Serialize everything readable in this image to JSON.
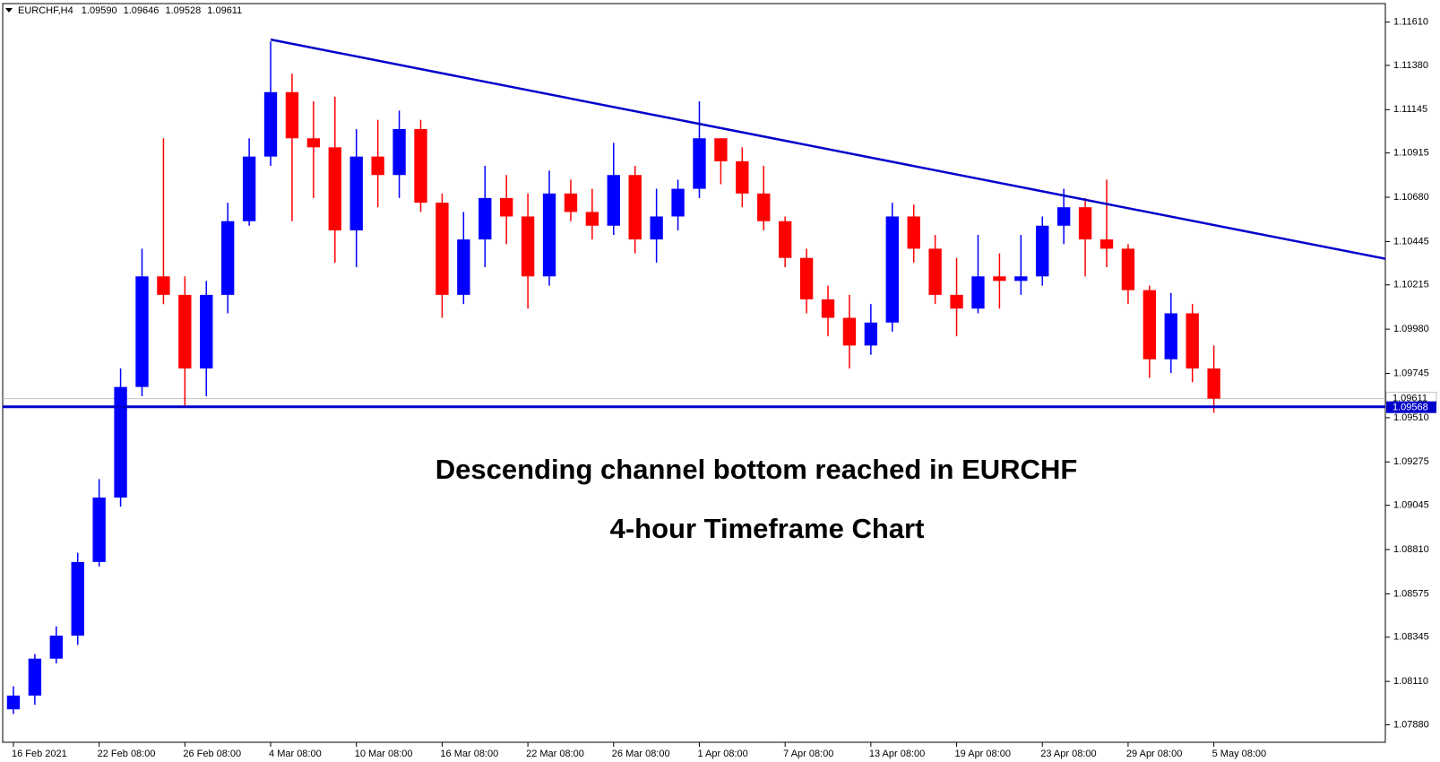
{
  "chart_data": {
    "type": "candlestick",
    "title": "EURCHF,H4",
    "header_ohlc": [
      {
        "value": 1.0959,
        "label": "1.09590"
      },
      1.09646,
      1.09528,
      1.09611
    ],
    "annotations": [
      "Descending channel bottom reached in EURCHF",
      "4-hour Timeframe Chart"
    ],
    "categories": [
      "16 Feb 2021",
      null,
      null,
      null,
      "22 Feb 08:00",
      null,
      null,
      null,
      "26 Feb 08:00",
      null,
      null,
      null,
      "4 Mar 08:00",
      null,
      null,
      null,
      "10 Mar 08:00",
      null,
      null,
      null,
      "16 Mar 08:00",
      null,
      null,
      null,
      "22 Mar 08:00",
      null,
      null,
      null,
      "26 Mar 08:00",
      null,
      null,
      null,
      "1 Apr 08:00",
      null,
      null,
      null,
      "7 Apr 08:00",
      null,
      null,
      null,
      "13 Apr 08:00",
      null,
      null,
      null,
      "19 Apr 08:00",
      null,
      null,
      null,
      "23 Apr 08:00",
      null,
      null,
      null,
      "29 Apr 08:00",
      null,
      null,
      null,
      "5 May 08:00"
    ],
    "open": [
      1.07962,
      1.08035,
      1.08231,
      1.08353,
      1.08744,
      1.09086,
      1.09673,
      1.1026,
      1.10162,
      1.09771,
      1.10162,
      1.10553,
      1.10896,
      1.11238,
      1.10993,
      1.10945,
      1.10504,
      1.10896,
      1.10798,
      1.11042,
      1.10651,
      1.10162,
      1.10456,
      1.10676,
      1.10578,
      1.1026,
      1.107,
      1.10602,
      1.10529,
      1.10798,
      1.10456,
      1.10578,
      1.10725,
      1.10993,
      1.10871,
      1.107,
      1.10553,
      1.10358,
      1.10138,
      1.1004,
      1.09893,
      1.10015,
      1.10578,
      1.10407,
      1.10162,
      1.10089,
      1.1026,
      1.10236,
      1.1026,
      1.10529,
      1.10627,
      1.10456,
      1.10407,
      1.10187,
      1.0982,
      1.10064,
      1.09771
    ],
    "high": [
      1.08084,
      1.08255,
      1.08402,
      1.08793,
      1.09184,
      1.09771,
      1.10407,
      1.10993,
      1.1026,
      1.10236,
      1.10651,
      1.10993,
      1.11507,
      1.11336,
      1.11189,
      1.11214,
      1.11042,
      1.11091,
      1.1114,
      1.11091,
      1.107,
      1.10602,
      1.10847,
      1.10798,
      1.107,
      1.10822,
      1.10773,
      1.10725,
      1.10969,
      1.10847,
      1.10725,
      1.10773,
      1.11189,
      1.10993,
      1.10945,
      1.10847,
      1.10578,
      1.10407,
      1.10211,
      1.10162,
      1.10113,
      1.10651,
      1.10641,
      1.1048,
      1.10358,
      1.1048,
      1.10382,
      1.1048,
      1.10578,
      1.10725,
      1.10676,
      1.10773,
      1.10431,
      1.10211,
      1.10172,
      1.10113,
      1.09893
    ],
    "low": [
      1.07937,
      1.07986,
      1.08206,
      1.08304,
      1.0872,
      1.09037,
      1.09624,
      1.10113,
      1.09575,
      1.09624,
      1.10064,
      1.10529,
      1.10847,
      1.10553,
      1.10676,
      1.10333,
      1.10309,
      1.10627,
      1.10676,
      1.10602,
      1.1004,
      1.10113,
      1.10309,
      1.10431,
      1.10089,
      1.10211,
      1.10553,
      1.10456,
      1.1048,
      1.10382,
      1.10333,
      1.10504,
      1.10676,
      1.10749,
      1.10627,
      1.10504,
      1.10309,
      1.10064,
      1.09942,
      1.09771,
      1.09844,
      1.09967,
      1.10333,
      1.10113,
      1.09942,
      1.10064,
      1.10089,
      1.10162,
      1.10211,
      1.10431,
      1.1026,
      1.10309,
      1.10113,
      1.09722,
      1.09747,
      1.09698,
      1.09536
    ],
    "close": [
      1.08035,
      1.08231,
      1.08353,
      1.08744,
      1.09086,
      1.09673,
      1.1026,
      1.10162,
      1.09771,
      1.10162,
      1.10553,
      1.10896,
      1.11238,
      1.10993,
      1.10945,
      1.10504,
      1.10896,
      1.10798,
      1.11042,
      1.10651,
      1.10162,
      1.10456,
      1.10676,
      1.10578,
      1.1026,
      1.107,
      1.10602,
      1.10529,
      1.10798,
      1.10456,
      1.10578,
      1.10725,
      1.10993,
      1.10871,
      1.107,
      1.10553,
      1.10358,
      1.10138,
      1.1004,
      1.09893,
      1.10015,
      1.10578,
      1.10407,
      1.10162,
      1.10089,
      1.1026,
      1.10236,
      1.1026,
      1.10529,
      1.10627,
      1.10456,
      1.10407,
      1.10187,
      1.0982,
      1.10064,
      1.09771,
      1.09611
    ],
    "up_color": "#0000ff",
    "down_color": "#ff0000",
    "ylim": [
      1.07787,
      1.11708
    ],
    "yticks": [
      {
        "value": 1.1161,
        "label": "1.11610"
      },
      {
        "value": 1.1138,
        "label": "1.11380"
      },
      1.11145,
      1.10915,
      {
        "value": 1.1068,
        "label": "1.10680"
      },
      1.10445,
      1.10215,
      {
        "value": 1.0998,
        "label": "1.09980"
      },
      1.09745,
      {
        "value": 1.0951,
        "label": "1.09510"
      },
      1.09275,
      1.09045,
      {
        "value": 1.0881,
        "label": "1.08810"
      },
      1.08575,
      1.08345,
      {
        "value": 1.0811,
        "label": "1.08110"
      },
      {
        "value": 1.0788,
        "label": "1.07880"
      }
    ],
    "trendline": {
      "x": [
        12,
        64.2
      ],
      "y": [
        1.11517,
        1.10349
      ],
      "color": "#0000cc"
    },
    "current_price": 1.09611,
    "current_price_color": "#c0c0c0",
    "support_level": 1.09568,
    "support_color": "#0000cc"
  }
}
